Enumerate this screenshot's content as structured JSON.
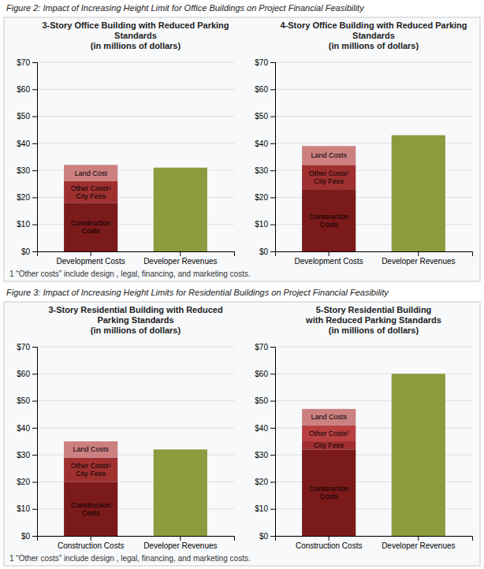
{
  "titles": [
    "Figure 2: Impact of Increasing Height Limit for Office Buildings on Project Financial Feasibility",
    "Figure 3: Impact of Increasing Height Limits for Residential Buildings on Project Financial Feasibility"
  ],
  "footnote": "1 “Other costs” include design , legal, financing, and marketing costs.",
  "chart_data": [
    {
      "type": "bar",
      "stacked": true,
      "grid": true,
      "title": "3-Story Office Building with Reduced Parking\nStandards\n(in millions of dollars)",
      "categories": [
        "Development Costs",
        "Developer Revenues"
      ],
      "ylim": [
        0,
        70
      ],
      "yticks": [
        {
          "value": 0,
          "label": "$0"
        },
        {
          "value": 10,
          "label": "$10"
        },
        {
          "value": 20,
          "label": "$20"
        },
        {
          "value": 30,
          "label": "$30"
        },
        {
          "value": 40,
          "label": "$40"
        },
        {
          "value": 50,
          "label": "$50"
        },
        {
          "value": 60,
          "label": "$60"
        },
        {
          "value": 70,
          "label": "$70"
        }
      ],
      "series": [
        {
          "name": "Construction\nCosts",
          "color": "#7B1A1A",
          "values": [
            18,
            null
          ]
        },
        {
          "name": "Other Costs¹\nCity Fees",
          "color": "#A03030",
          "values": [
            8,
            null
          ]
        },
        {
          "name": "Land Cost",
          "color": "#CC8080",
          "values": [
            6,
            null
          ]
        },
        {
          "color": "#8B9B3E",
          "values": [
            null,
            31
          ]
        }
      ]
    },
    {
      "type": "bar",
      "stacked": true,
      "grid": true,
      "title": "4-Story Office Building with Reduced Parking\nStandards\n(in millions of dollars)",
      "categories": [
        "Development Costs",
        "Developer Revenues"
      ],
      "ylim": [
        0,
        70
      ],
      "yticks": [
        {
          "value": 0,
          "label": "$0"
        },
        {
          "value": 10,
          "label": "$10"
        },
        {
          "value": 20,
          "label": "$20"
        },
        {
          "value": 30,
          "label": "$30"
        },
        {
          "value": 40,
          "label": "$40"
        },
        {
          "value": 50,
          "label": "$50"
        },
        {
          "value": 60,
          "label": "$60"
        },
        {
          "value": 70,
          "label": "$70"
        }
      ],
      "series": [
        {
          "name": "Construction\nCosts",
          "color": "#7B1A1A",
          "values": [
            23,
            null
          ]
        },
        {
          "name": "Other Costs¹\nCity Fees",
          "color": "#A03030",
          "values": [
            9,
            null
          ]
        },
        {
          "name": "Land Costs",
          "color": "#CC8080",
          "values": [
            7,
            null
          ]
        },
        {
          "color": "#8B9B3E",
          "values": [
            null,
            43
          ]
        }
      ]
    },
    {
      "type": "bar",
      "stacked": true,
      "grid": true,
      "title": "3-Story Residential Building with Reduced\nParking Standards\n(in millions of dollars)",
      "categories": [
        "Construction Costs",
        "Developer Revenues"
      ],
      "ylim": [
        0,
        70
      ],
      "yticks": [
        {
          "value": 0,
          "label": "$0"
        },
        {
          "value": 10,
          "label": "$10"
        },
        {
          "value": 20,
          "label": "$20"
        },
        {
          "value": 30,
          "label": "$30"
        },
        {
          "value": 40,
          "label": "$40"
        },
        {
          "value": 50,
          "label": "$50"
        },
        {
          "value": 60,
          "label": "$60"
        },
        {
          "value": 70,
          "label": "$70"
        }
      ],
      "series": [
        {
          "name": "Construction\nCosts",
          "color": "#7B1A1A",
          "values": [
            20,
            null
          ]
        },
        {
          "name": "Other Costs¹\nCity Fees",
          "color": "#A03030",
          "values": [
            9,
            null
          ]
        },
        {
          "name": "Land Costs",
          "color": "#CC8080",
          "values": [
            6,
            null
          ]
        },
        {
          "color": "#8B9B3E",
          "values": [
            null,
            32
          ]
        }
      ]
    },
    {
      "type": "bar",
      "stacked": true,
      "grid": true,
      "title": "5-Story Residential Building\nwith Reduced Parking Standards\n(in millions of dollars)",
      "categories": [
        "Construction Costs",
        "Developer Revenues"
      ],
      "ylim": [
        0,
        70
      ],
      "yticks": [
        {
          "value": 0,
          "label": "$0"
        },
        {
          "value": 10,
          "label": "$10"
        },
        {
          "value": 20,
          "label": "$20"
        },
        {
          "value": 30,
          "label": "$30"
        },
        {
          "value": 40,
          "label": "$40"
        },
        {
          "value": 50,
          "label": "$50"
        },
        {
          "value": 60,
          "label": "$60"
        },
        {
          "value": 70,
          "label": "$70"
        }
      ],
      "series": [
        {
          "name": "Construction\nCosts",
          "color": "#7B1A1A",
          "values": [
            32,
            null
          ]
        },
        {
          "name": "City Fees",
          "color": "#A03030",
          "values": [
            3,
            null
          ]
        },
        {
          "name": "Other Costs¹",
          "color": "#B84040",
          "values": [
            6,
            null
          ]
        },
        {
          "name": "Land Costs",
          "color": "#CC8080",
          "values": [
            6,
            null
          ]
        },
        {
          "color": "#8B9B3E",
          "values": [
            null,
            60
          ]
        }
      ]
    }
  ]
}
